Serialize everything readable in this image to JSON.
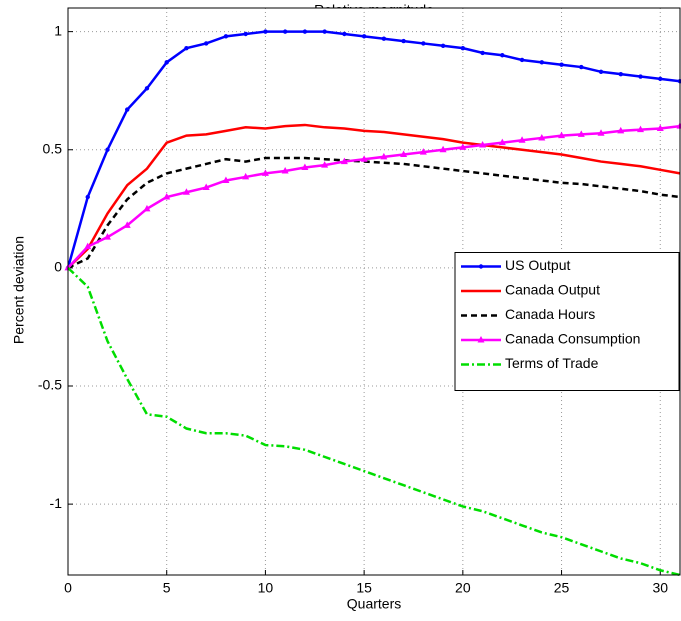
{
  "chart_data": {
    "type": "line",
    "title": "Relative magnitude",
    "x_label": "Quarters",
    "y_label": "Percent deviation",
    "x": [
      0,
      1,
      2,
      3,
      4,
      5,
      6,
      7,
      8,
      9,
      10,
      11,
      12,
      13,
      14,
      15,
      16,
      17,
      18,
      19,
      20,
      21,
      22,
      23,
      24,
      25,
      26,
      27,
      28,
      29,
      30,
      31
    ],
    "series": [
      {
        "name": "US Output",
        "color": "#0000ff",
        "line_style": "solid",
        "marker": "dot",
        "values": [
          0,
          0.3,
          0.5,
          0.67,
          0.76,
          0.87,
          0.93,
          0.95,
          0.98,
          0.99,
          1.0,
          1.0,
          1.0,
          1.0,
          0.99,
          0.98,
          0.97,
          0.96,
          0.95,
          0.94,
          0.93,
          0.91,
          0.9,
          0.88,
          0.87,
          0.86,
          0.85,
          0.83,
          0.82,
          0.81,
          0.8,
          0.79
        ]
      },
      {
        "name": "Canada Output",
        "color": "#ff0000",
        "line_style": "solid",
        "marker": "none",
        "values": [
          0,
          0.08,
          0.23,
          0.35,
          0.42,
          0.53,
          0.56,
          0.565,
          0.58,
          0.595,
          0.59,
          0.6,
          0.605,
          0.595,
          0.59,
          0.58,
          0.575,
          0.565,
          0.555,
          0.545,
          0.53,
          0.52,
          0.51,
          0.5,
          0.49,
          0.48,
          0.465,
          0.45,
          0.44,
          0.43,
          0.415,
          0.4
        ]
      },
      {
        "name": "Canada Hours",
        "color": "#000000",
        "line_style": "dashed",
        "marker": "none",
        "values": [
          0,
          0.04,
          0.18,
          0.29,
          0.36,
          0.4,
          0.42,
          0.44,
          0.46,
          0.45,
          0.465,
          0.465,
          0.465,
          0.46,
          0.455,
          0.45,
          0.445,
          0.44,
          0.43,
          0.42,
          0.41,
          0.4,
          0.39,
          0.38,
          0.37,
          0.36,
          0.355,
          0.345,
          0.335,
          0.325,
          0.31,
          0.3
        ]
      },
      {
        "name": "Canada Consumption",
        "color": "#ff00ff",
        "line_style": "solid",
        "marker": "triangle",
        "values": [
          0,
          0.09,
          0.13,
          0.18,
          0.25,
          0.3,
          0.32,
          0.34,
          0.37,
          0.385,
          0.4,
          0.41,
          0.425,
          0.435,
          0.45,
          0.46,
          0.47,
          0.48,
          0.49,
          0.5,
          0.51,
          0.52,
          0.53,
          0.54,
          0.55,
          0.56,
          0.565,
          0.57,
          0.58,
          0.585,
          0.59,
          0.6
        ]
      },
      {
        "name": "Terms of Trade",
        "color": "#00dd00",
        "line_style": "dashdot",
        "marker": "none",
        "values": [
          0,
          -0.08,
          -0.31,
          -0.47,
          -0.62,
          -0.63,
          -0.68,
          -0.7,
          -0.7,
          -0.71,
          -0.75,
          -0.755,
          -0.77,
          -0.8,
          -0.83,
          -0.86,
          -0.89,
          -0.92,
          -0.95,
          -0.98,
          -1.01,
          -1.03,
          -1.06,
          -1.09,
          -1.12,
          -1.14,
          -1.17,
          -1.2,
          -1.23,
          -1.25,
          -1.28,
          -1.3
        ]
      }
    ],
    "xlim": [
      0,
      31
    ],
    "ylim": [
      -1.3,
      1.1
    ],
    "xticks": [
      0,
      5,
      10,
      15,
      20,
      25,
      30
    ],
    "yticks": [
      -1,
      -0.5,
      0,
      0.5,
      1
    ],
    "grid": true,
    "legend_position": "right"
  }
}
